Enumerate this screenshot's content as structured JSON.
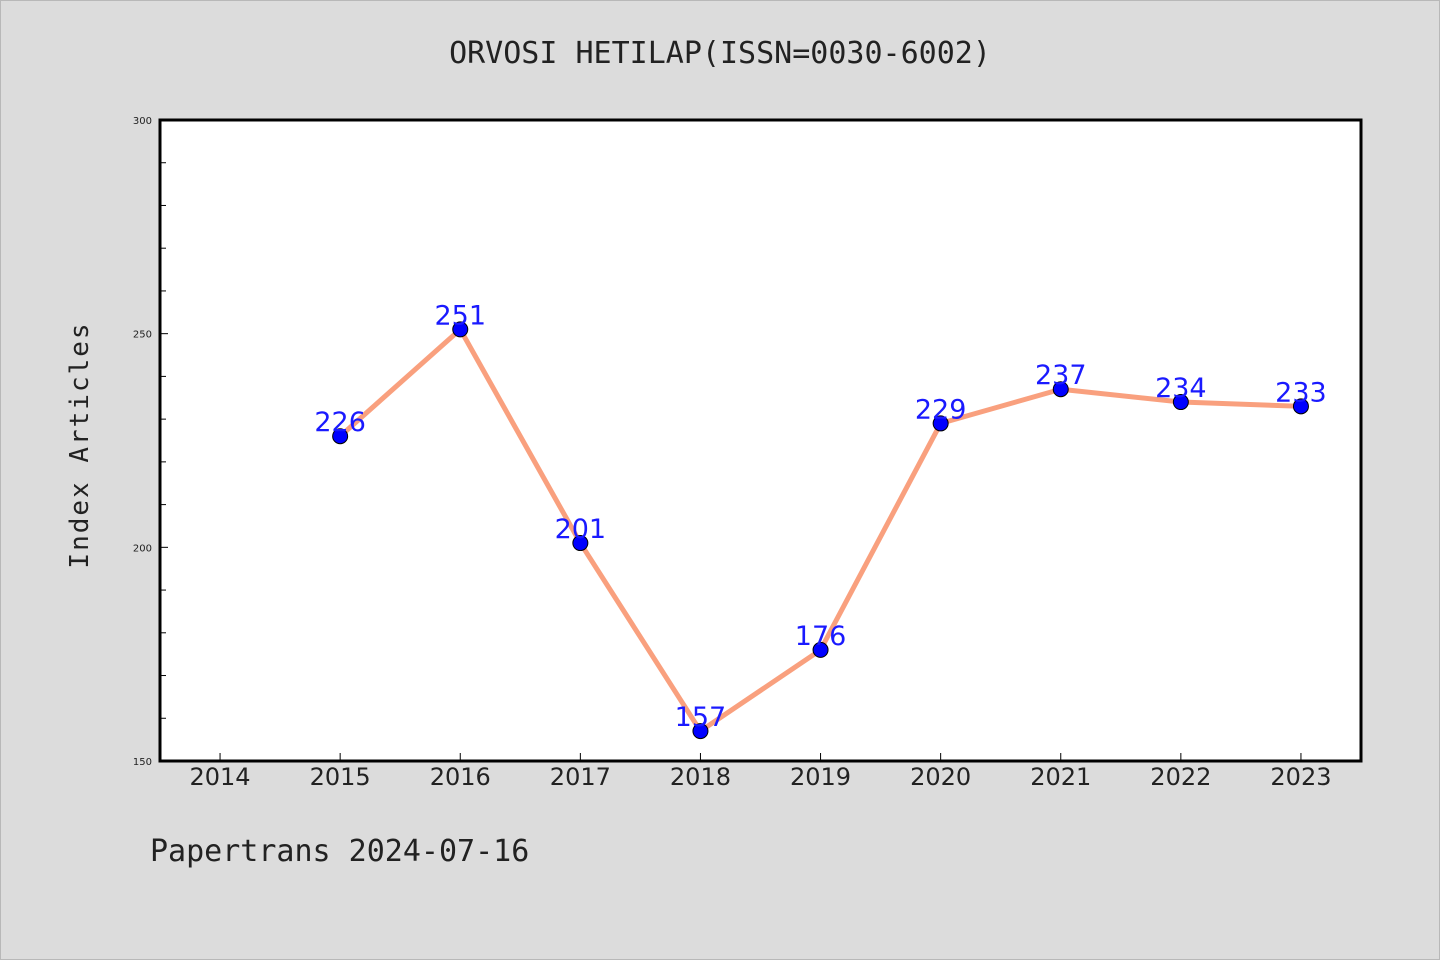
{
  "page": {
    "title": "ORVOSI HETILAP(ISSN=0030-6002)",
    "footer": "Papertrans 2024-07-16"
  },
  "colors": {
    "background": "#dcdcdc",
    "plot_background": "#ffffff",
    "line": "#f9a07e",
    "marker": "#0000ff",
    "label": "#1a1aff"
  },
  "chart_data": {
    "type": "line",
    "title": "ORVOSI HETILAP(ISSN=0030-6002)",
    "xlabel": "",
    "ylabel": "Index Articles",
    "x_ticks": [
      "2014",
      "2015",
      "2016",
      "2017",
      "2018",
      "2019",
      "2020",
      "2021",
      "2022",
      "2023"
    ],
    "y_ticks": [
      150,
      200,
      250,
      300
    ],
    "ylim": [
      150,
      300
    ],
    "xlim": [
      2013.5,
      2023.5
    ],
    "grid": false,
    "series": [
      {
        "x": [
          2015,
          2016,
          2017,
          2018,
          2019,
          2020,
          2021,
          2022,
          2023
        ],
        "values": [
          226,
          251,
          201,
          157,
          176,
          229,
          237,
          234,
          233
        ]
      }
    ]
  }
}
